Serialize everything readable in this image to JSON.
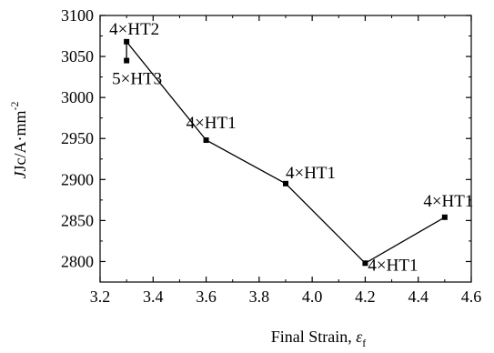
{
  "chart_data": {
    "type": "line",
    "title": "",
    "xlabel": "Final Strain, ",
    "xlabel_symbol": "ε",
    "xlabel_subscript": "f",
    "ylabel": "Jc/A·mm",
    "ylabel_superscript": "-2",
    "xlim": [
      3.2,
      4.6
    ],
    "ylim": [
      2775,
      3100
    ],
    "xticks": [
      "3.2",
      "3.4",
      "3.6",
      "3.8",
      "4.0",
      "4.2",
      "4.4",
      "4.6"
    ],
    "xtick_values": [
      3.2,
      3.4,
      3.6,
      3.8,
      4.0,
      4.2,
      4.4,
      4.6
    ],
    "yticks": [
      "2800",
      "2850",
      "2900",
      "2950",
      "3000",
      "3050",
      "3100"
    ],
    "ytick_values": [
      2800,
      2850,
      2900,
      2950,
      3000,
      3050,
      3100
    ],
    "grid": false,
    "legend": "none",
    "series": [
      {
        "points": [
          {
            "x": 3.3,
            "y": 3045,
            "label": "5×HT3"
          },
          {
            "x": 3.3,
            "y": 3068,
            "label": "4×HT2"
          },
          {
            "x": 3.6,
            "y": 2948,
            "label": "4×HT1"
          },
          {
            "x": 3.9,
            "y": 2895,
            "label": "4×HT1"
          },
          {
            "x": 4.2,
            "y": 2798,
            "label": "4×HT1"
          },
          {
            "x": 4.5,
            "y": 2854,
            "label": "4×HT1"
          }
        ]
      }
    ],
    "color": "#000000"
  }
}
